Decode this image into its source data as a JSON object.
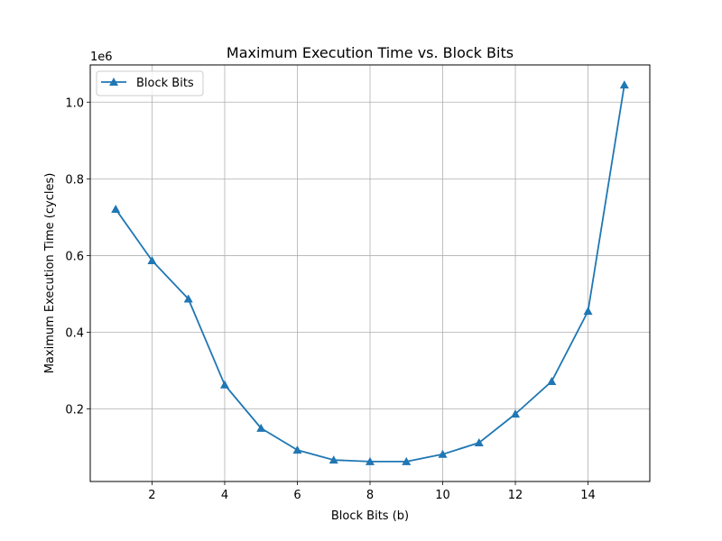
{
  "chart_data": {
    "type": "line",
    "title": "Maximum Execution Time vs. Block Bits",
    "xlabel": "Block Bits (b)",
    "ylabel": "Maximum Execution Time (cycles)",
    "y_offset_label": "1e6",
    "y_scale": 1000000,
    "xlim": [
      0.3,
      15.7
    ],
    "ylim": [
      11000,
      1097000
    ],
    "x_ticks": [
      2,
      4,
      6,
      8,
      10,
      12,
      14
    ],
    "x_tick_labels": [
      "2",
      "4",
      "6",
      "8",
      "10",
      "12",
      "14"
    ],
    "y_ticks": [
      200000,
      400000,
      600000,
      800000,
      1000000
    ],
    "y_tick_labels": [
      "0.2",
      "0.4",
      "0.6",
      "0.8",
      "1.0"
    ],
    "grid": true,
    "legend_position": "upper-left",
    "series": [
      {
        "name": "Block Bits",
        "color": "#1f77b4",
        "marker": "triangle-up",
        "x": [
          1,
          2,
          3,
          4,
          5,
          6,
          7,
          8,
          9,
          10,
          11,
          12,
          13,
          14,
          15
        ],
        "y": [
          721000,
          587000,
          487000,
          263000,
          150000,
          93000,
          67000,
          63000,
          63000,
          82000,
          112000,
          187000,
          272000,
          455000,
          1045000
        ]
      }
    ]
  }
}
